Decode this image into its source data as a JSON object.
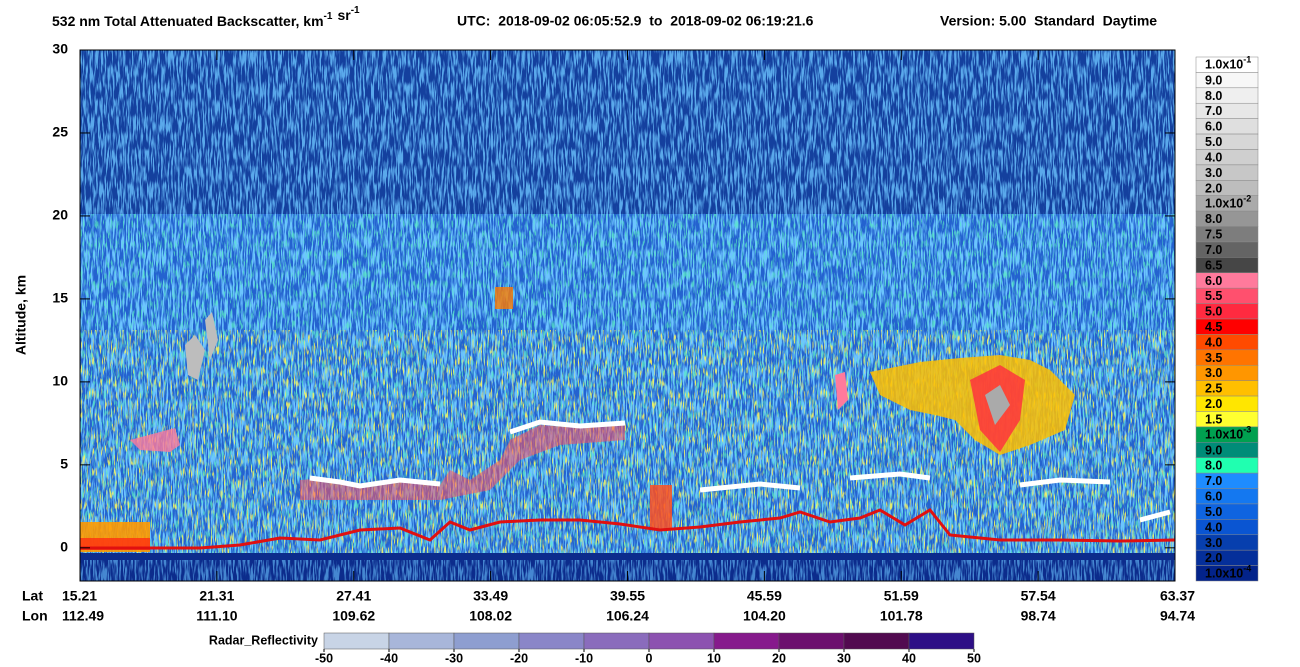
{
  "chart_data": {
    "type": "curtain",
    "title_parts": [
      {
        "text": "532 nm Total Attenuated Backscatter, km",
        "sup": "-1"
      },
      {
        "text": "sr",
        "sup": "-1"
      }
    ],
    "subtitle": "UTC:  2018-09-02 06:05:52.9  to  2018-09-02 06:19:21.6",
    "version": "Version: 5.00  Standard  Daytime",
    "ylabel": "Altitude, km",
    "ylim": [
      -2,
      30
    ],
    "yticks": [
      0,
      5,
      10,
      15,
      20,
      25,
      30
    ],
    "xrows": {
      "lat": "Lat",
      "lon": "Lon"
    },
    "xticks": {
      "lat": [
        15.21,
        21.31,
        27.41,
        33.49,
        39.55,
        45.59,
        51.59,
        57.54,
        63.37
      ],
      "lon": [
        112.49,
        {
          "value": 111.1,
          "label": "111.10"
        },
        109.62,
        108.02,
        106.24,
        {
          "value": 104.2,
          "label": "104.20"
        },
        101.78,
        98.74,
        94.74
      ]
    },
    "colorbar": {
      "labels": [
        {
          "text": "1.0x10",
          "sup": "-1"
        },
        "9.0",
        "8.0",
        "7.0",
        "6.0",
        "5.0",
        "4.0",
        "3.0",
        "2.0",
        {
          "text": "1.0x10",
          "sup": "-2"
        },
        "8.0",
        "7.5",
        "7.0",
        "6.5",
        "6.0",
        "5.5",
        "5.0",
        "4.5",
        "4.0",
        "3.5",
        "3.0",
        "2.5",
        "2.0",
        "1.5",
        {
          "text": "1.0x10",
          "sup": "-3"
        },
        "9.0",
        "8.0",
        "7.0",
        "6.0",
        "5.0",
        "4.0",
        "3.0",
        "2.0",
        {
          "text": "1.0x10",
          "sup": "-4"
        }
      ],
      "colors": [
        "#ffffff",
        "#f7f7f7",
        "#efefef",
        "#e7e7e7",
        "#dfdfdf",
        "#d7d7d7",
        "#cfcfcf",
        "#c7c7c7",
        "#bdbdbd",
        "#aaaaaa",
        "#969696",
        "#7d7d7d",
        "#646464",
        "#464646",
        "#ff7a9c",
        "#ff506e",
        "#ff2a40",
        "#ff0000",
        "#ff4a00",
        "#ff7400",
        "#ff9600",
        "#ffbf00",
        "#ffe600",
        "#ffff30",
        "#00a050",
        "#008c78",
        "#20ffb0",
        "#1e8cff",
        "#1478f0",
        "#0f64e0",
        "#0a55d2",
        "#073fae",
        "#052f9a",
        "#03238a"
      ]
    },
    "radar": {
      "label": "Radar_Reflectivity",
      "ticks": [
        -50,
        -40,
        -30,
        -20,
        -10,
        0,
        10,
        20,
        30,
        40,
        50
      ],
      "colors": [
        "#c8d4e6",
        "#a8b6da",
        "#8e9ed0",
        "#8a86c8",
        "#8a6cbc",
        "#8c52b0",
        "#861a8c",
        "#6c106e",
        "#520a50",
        "#2e0f86"
      ]
    }
  }
}
